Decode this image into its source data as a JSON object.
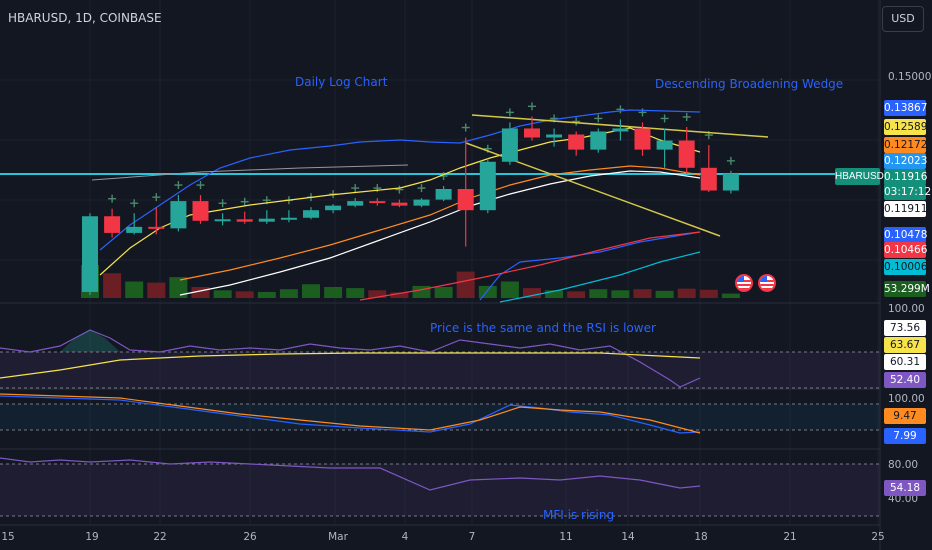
{
  "header": {
    "symbol": "HBARUSD, 1D, COINBASE",
    "currency": "USD"
  },
  "annotations": {
    "daily_log_chart": "Daily Log Chart",
    "wedge": "Descending Broadening Wedge",
    "rsi_note": "Price is the same and the RSI is lower",
    "mfi_note": "MFI is rising"
  },
  "price_scale": {
    "top_label": "0.15000",
    "tags": [
      {
        "value": "0.13867",
        "bg": "#2962ff",
        "fg": "#ffffff"
      },
      {
        "value": "0.12589",
        "bg": "#f7e34a",
        "fg": "#131722"
      },
      {
        "value": "0.12172",
        "bg": "#ff8a1f",
        "fg": "#131722"
      },
      {
        "value": "0.12023",
        "bg": "#2196f3",
        "fg": "#ffffff"
      },
      {
        "value": "0.11916",
        "bg": "#138f7a",
        "fg": "#ffffff"
      },
      {
        "value": "03:17:12",
        "bg": "#138f7a",
        "fg": "#ffffff"
      },
      {
        "value": "0.11911",
        "bg": "#ffffff",
        "fg": "#131722"
      },
      {
        "value": "0.10478",
        "bg": "#2962ff",
        "fg": "#ffffff"
      },
      {
        "value": "0.10466",
        "bg": "#f23645",
        "fg": "#ffffff"
      },
      {
        "value": "0.10006",
        "bg": "#00bcd4",
        "fg": "#131722"
      },
      {
        "value": "53.299M",
        "bg": "#1b5e20",
        "fg": "#ffffff"
      }
    ],
    "symbol_tag": "HBARUSD"
  },
  "rsi_scale": {
    "top": "100.00",
    "tags": [
      {
        "value": "73.56",
        "bg": "#ffffff",
        "fg": "#131722"
      },
      {
        "value": "63.67",
        "bg": "#f7e34a",
        "fg": "#131722"
      },
      {
        "value": "60.31",
        "bg": "#ffffff",
        "fg": "#131722"
      },
      {
        "value": "52.40",
        "bg": "#7e57c2",
        "fg": "#ffffff"
      }
    ]
  },
  "macd_scale": {
    "top": "100.00",
    "tags": [
      {
        "value": "9.47",
        "bg": "#ff8a1f",
        "fg": "#131722"
      },
      {
        "value": "7.99",
        "bg": "#2962ff",
        "fg": "#ffffff"
      }
    ]
  },
  "mfi_scale": {
    "top": "80.00",
    "bottom": "40.00",
    "tags": [
      {
        "value": "54.18",
        "bg": "#7e57c2",
        "fg": "#ffffff"
      }
    ]
  },
  "time_axis": [
    "15",
    "19",
    "22",
    "26",
    "Mar",
    "4",
    "7",
    "11",
    "14",
    "18",
    "21",
    "25"
  ],
  "chart_data": {
    "type": "candlestick",
    "candles": [
      {
        "o": 0.08,
        "h": 0.106,
        "l": 0.079,
        "c": 0.105,
        "v": 60
      },
      {
        "o": 0.105,
        "h": 0.1075,
        "l": 0.098,
        "c": 0.0995,
        "v": 45
      },
      {
        "o": 0.0995,
        "h": 0.106,
        "l": 0.099,
        "c": 0.1015,
        "v": 30
      },
      {
        "o": 0.1015,
        "h": 0.108,
        "l": 0.099,
        "c": 0.101,
        "v": 28
      },
      {
        "o": 0.101,
        "h": 0.112,
        "l": 0.1,
        "c": 0.11,
        "v": 38
      },
      {
        "o": 0.11,
        "h": 0.112,
        "l": 0.1025,
        "c": 0.1035,
        "v": 20
      },
      {
        "o": 0.1035,
        "h": 0.106,
        "l": 0.102,
        "c": 0.104,
        "v": 14
      },
      {
        "o": 0.104,
        "h": 0.1065,
        "l": 0.1025,
        "c": 0.1032,
        "v": 12
      },
      {
        "o": 0.1032,
        "h": 0.107,
        "l": 0.1025,
        "c": 0.1042,
        "v": 11
      },
      {
        "o": 0.1042,
        "h": 0.107,
        "l": 0.103,
        "c": 0.1045,
        "v": 16
      },
      {
        "o": 0.1045,
        "h": 0.108,
        "l": 0.104,
        "c": 0.107,
        "v": 25
      },
      {
        "o": 0.107,
        "h": 0.109,
        "l": 0.106,
        "c": 0.1085,
        "v": 20
      },
      {
        "o": 0.1085,
        "h": 0.111,
        "l": 0.108,
        "c": 0.11,
        "v": 18
      },
      {
        "o": 0.11,
        "h": 0.111,
        "l": 0.1085,
        "c": 0.1095,
        "v": 14
      },
      {
        "o": 0.1095,
        "h": 0.1105,
        "l": 0.108,
        "c": 0.1085,
        "v": 10
      },
      {
        "o": 0.1085,
        "h": 0.111,
        "l": 0.108,
        "c": 0.1105,
        "v": 22
      },
      {
        "o": 0.1105,
        "h": 0.115,
        "l": 0.11,
        "c": 0.114,
        "v": 20
      },
      {
        "o": 0.114,
        "h": 0.131,
        "l": 0.095,
        "c": 0.107,
        "v": 48
      },
      {
        "o": 0.107,
        "h": 0.124,
        "l": 0.106,
        "c": 0.123,
        "v": 22
      },
      {
        "o": 0.123,
        "h": 0.136,
        "l": 0.122,
        "c": 0.134,
        "v": 30
      },
      {
        "o": 0.134,
        "h": 0.138,
        "l": 0.13,
        "c": 0.131,
        "v": 18
      },
      {
        "o": 0.131,
        "h": 0.134,
        "l": 0.128,
        "c": 0.132,
        "v": 14
      },
      {
        "o": 0.132,
        "h": 0.133,
        "l": 0.125,
        "c": 0.127,
        "v": 12
      },
      {
        "o": 0.127,
        "h": 0.134,
        "l": 0.126,
        "c": 0.133,
        "v": 16
      },
      {
        "o": 0.133,
        "h": 0.137,
        "l": 0.13,
        "c": 0.134,
        "v": 14
      },
      {
        "o": 0.134,
        "h": 0.136,
        "l": 0.125,
        "c": 0.127,
        "v": 16
      },
      {
        "o": 0.127,
        "h": 0.134,
        "l": 0.121,
        "c": 0.13,
        "v": 13
      },
      {
        "o": 0.13,
        "h": 0.1345,
        "l": 0.119,
        "c": 0.121,
        "v": 17
      },
      {
        "o": 0.121,
        "h": 0.1285,
        "l": 0.113,
        "c": 0.1135,
        "v": 15
      },
      {
        "o": 0.1135,
        "h": 0.12,
        "l": 0.1125,
        "c": 0.1191,
        "v": 8
      }
    ]
  }
}
